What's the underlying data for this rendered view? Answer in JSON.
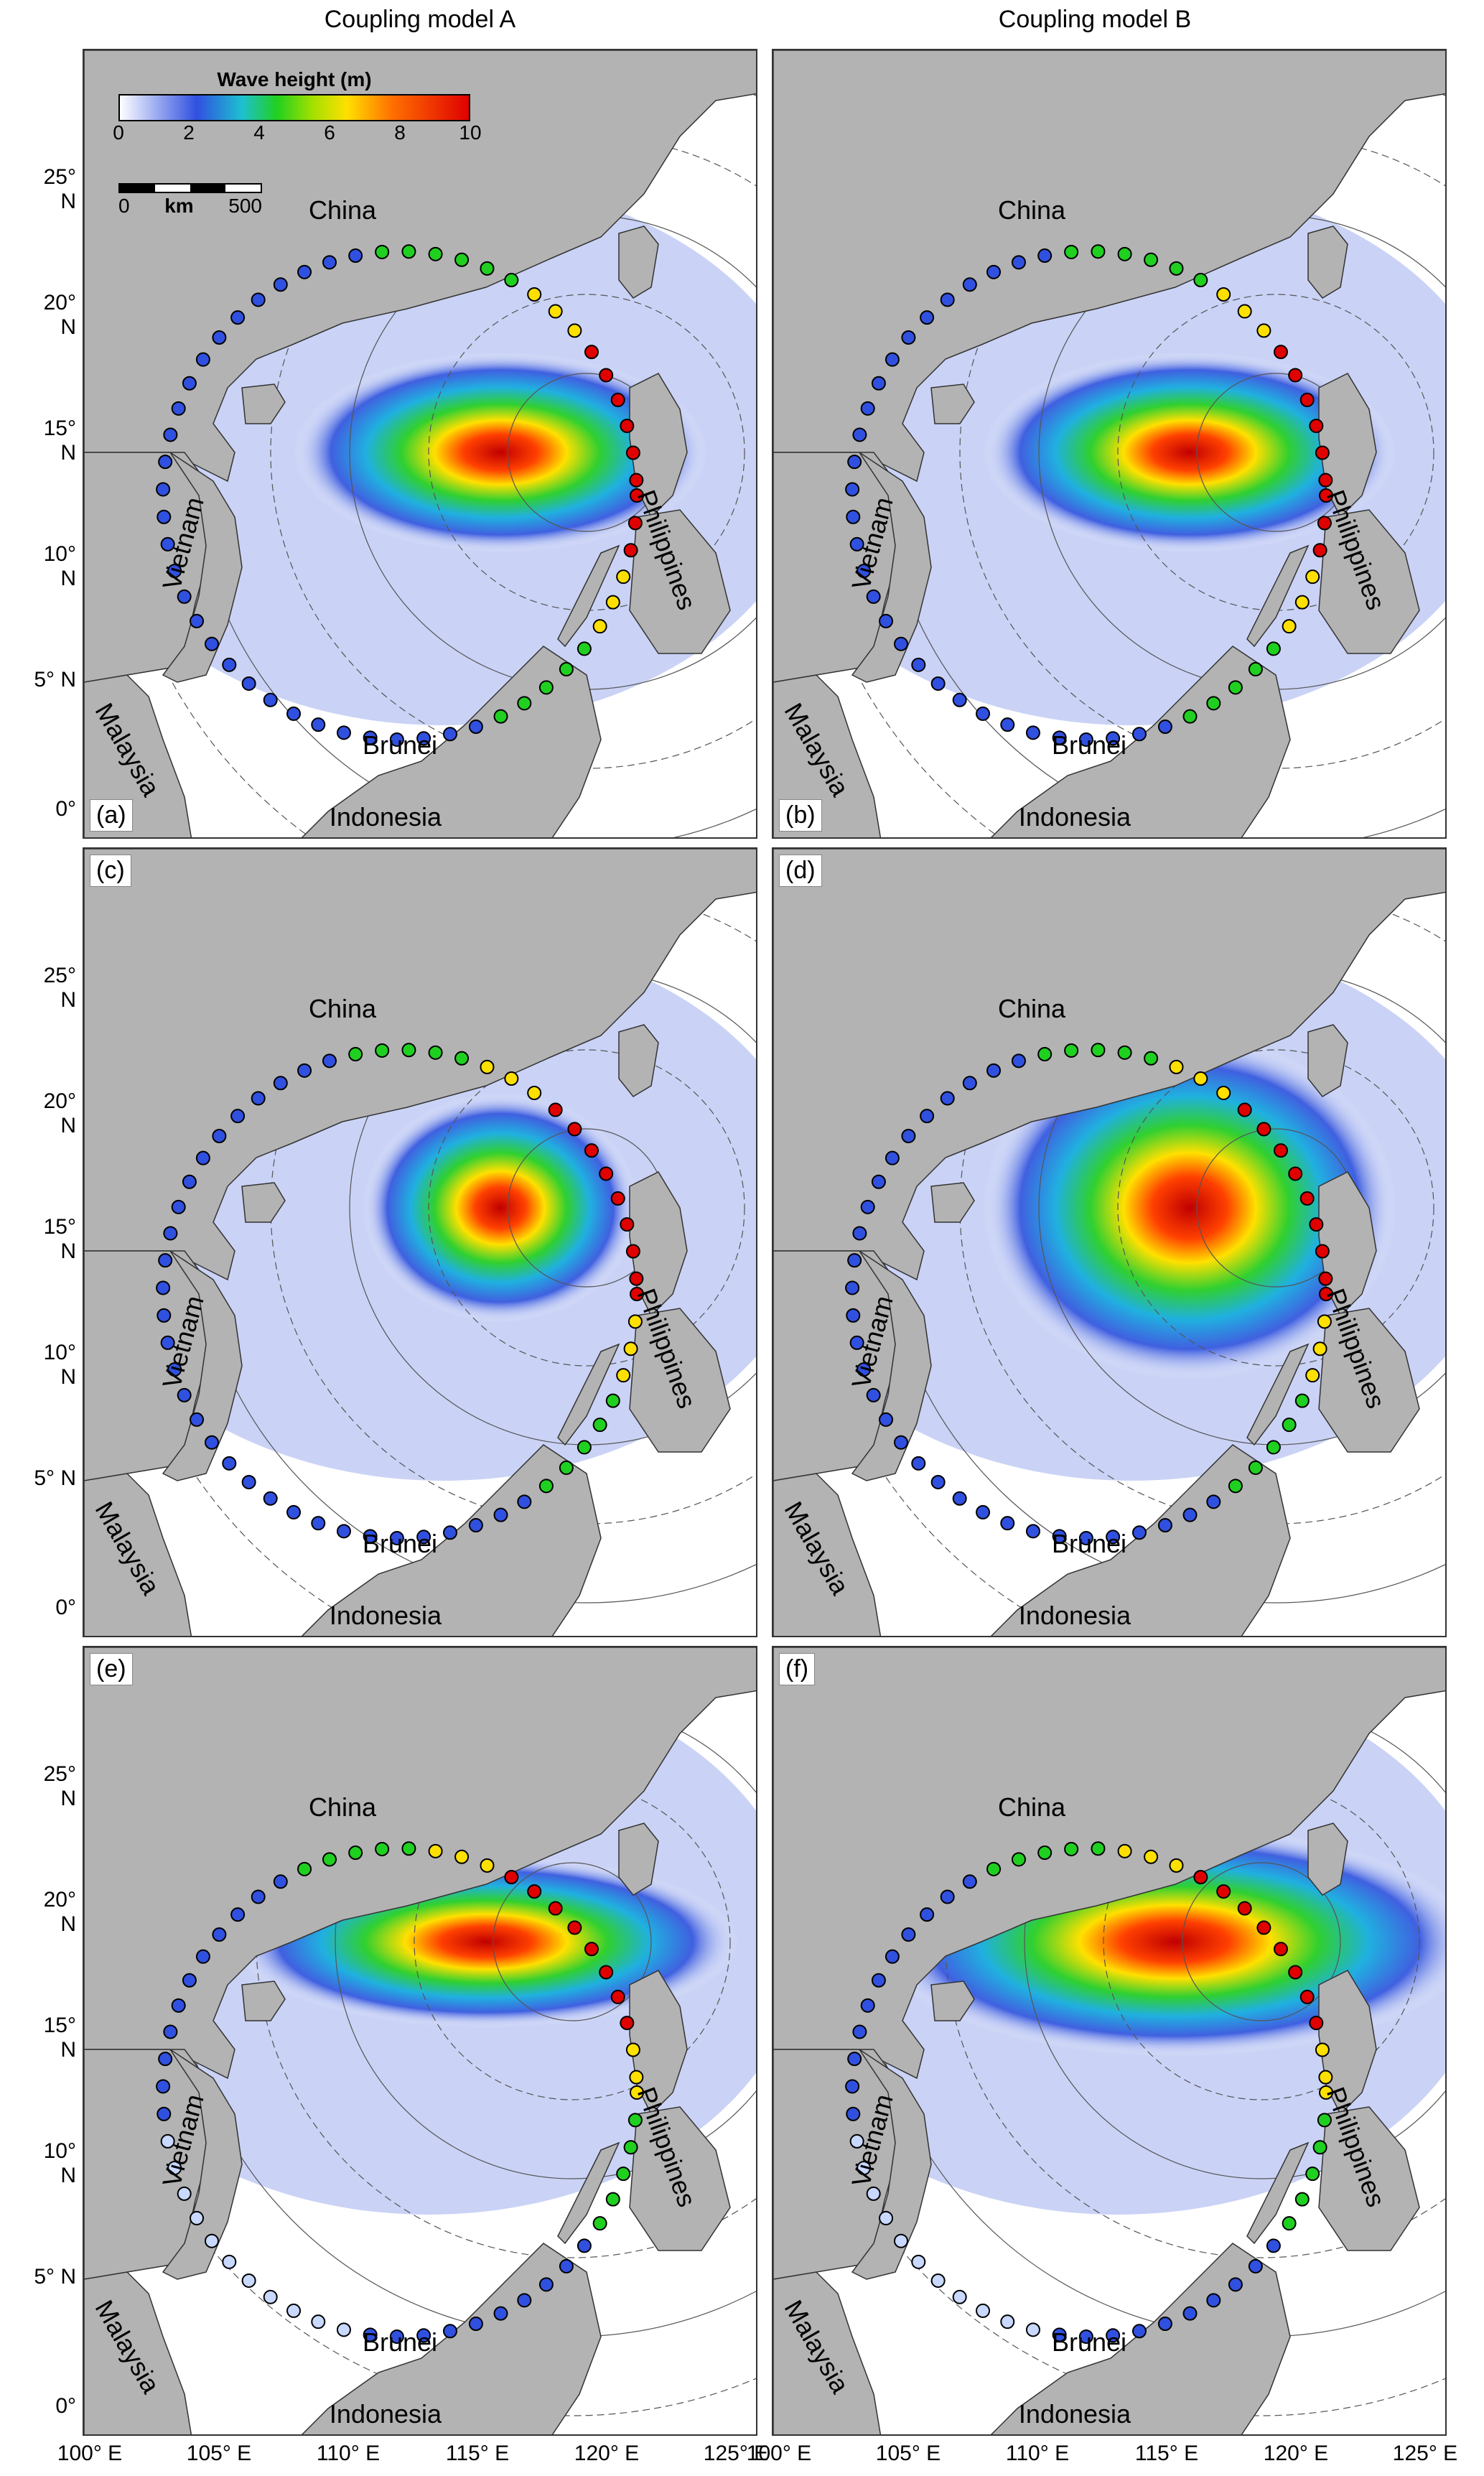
{
  "column_titles": [
    "Coupling model A",
    "Coupling model B"
  ],
  "legend": {
    "title": "Wave height (m)",
    "ticks": [
      "0",
      "2",
      "4",
      "6",
      "8",
      "10"
    ]
  },
  "scale_bar": {
    "left": "0",
    "unit": "km",
    "right": "500"
  },
  "panel_labels": [
    "(a)",
    "(b)",
    "(c)",
    "(d)",
    "(e)",
    "(f)"
  ],
  "country_labels": [
    "China",
    "Vietnam",
    "Philippines",
    "Malaysia",
    "Brunei",
    "Indonesia"
  ],
  "lat_ticks": [
    "25° N",
    "20° N",
    "15° N",
    "10° N",
    "5° N",
    "0°"
  ],
  "lon_ticks": [
    "100° E",
    "105° E",
    "110° E",
    "115° E",
    "120° E",
    "125° E"
  ],
  "colors": {
    "land": "#b3b3b3",
    "sea": "#ffffff",
    "low": "#3050e0",
    "mid": "#20d020",
    "high": "#ffe000",
    "max": "#e00000"
  }
}
